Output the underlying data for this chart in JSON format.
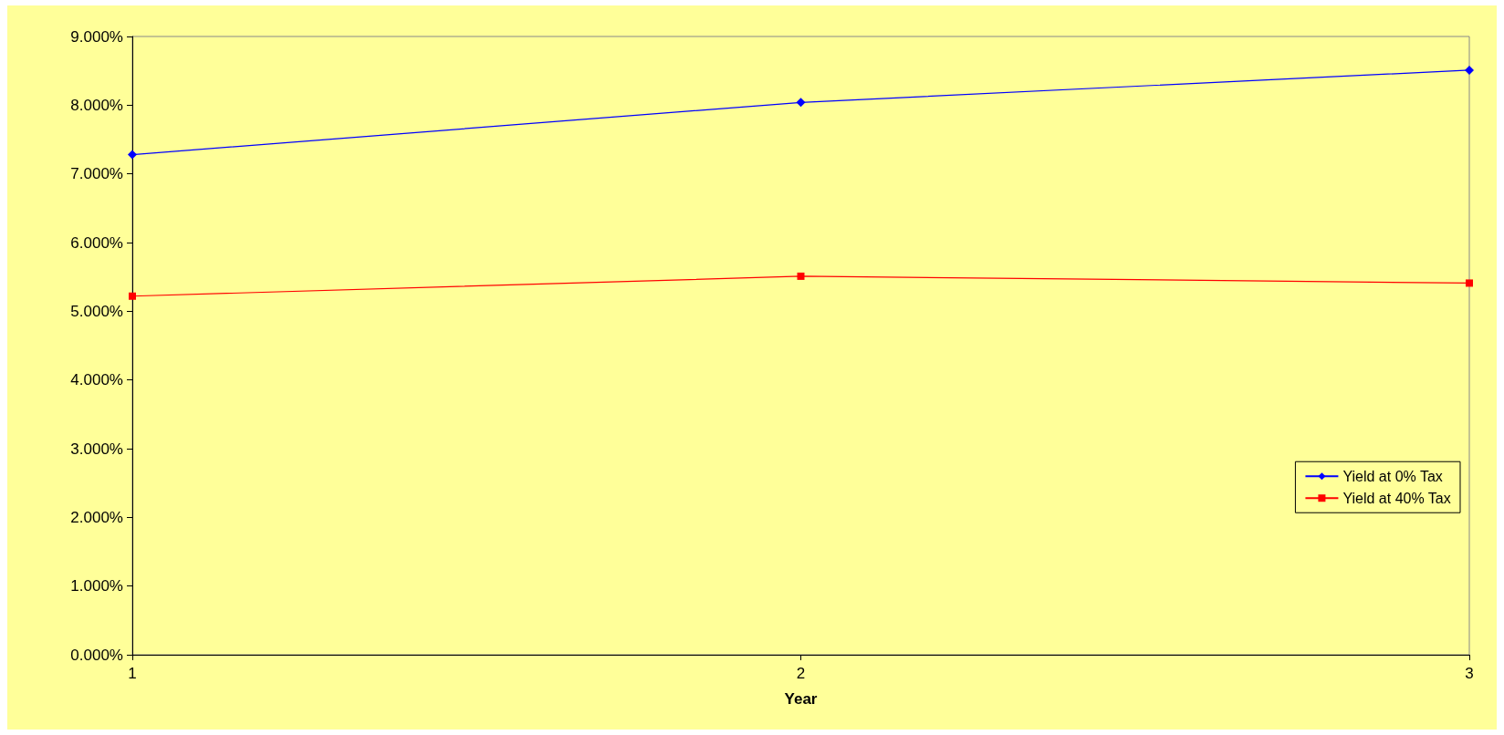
{
  "chart_data": {
    "type": "line",
    "xlabel": "Year",
    "categories": [
      "1",
      "2",
      "3"
    ],
    "series": [
      {
        "name": "Yield at 0% Tax",
        "color": "#0000ff",
        "marker": "diamond",
        "values": [
          7.28,
          8.04,
          8.51
        ]
      },
      {
        "name": "Yield at 40% Tax",
        "color": "#ff0000",
        "marker": "square",
        "values": [
          5.22,
          5.51,
          5.41
        ]
      }
    ],
    "ylim": [
      0,
      9
    ],
    "yticks": [
      {
        "value": 0,
        "label": "0.000%"
      },
      {
        "value": 1,
        "label": "1.000%"
      },
      {
        "value": 2,
        "label": "2.000%"
      },
      {
        "value": 3,
        "label": "3.000%"
      },
      {
        "value": 4,
        "label": "4.000%"
      },
      {
        "value": 5,
        "label": "5.000%"
      },
      {
        "value": 6,
        "label": "6.000%"
      },
      {
        "value": 7,
        "label": "7.000%"
      },
      {
        "value": 8,
        "label": "8.000%"
      },
      {
        "value": 9,
        "label": "9.000%"
      }
    ],
    "grid": false,
    "legend": "right"
  }
}
